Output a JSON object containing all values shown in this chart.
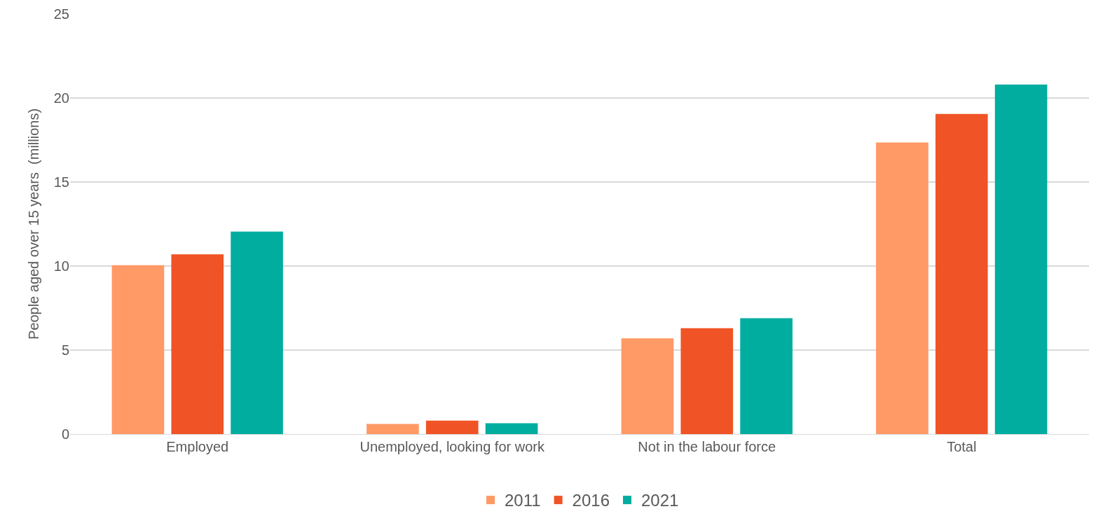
{
  "chart_data": {
    "type": "bar",
    "ylabel": "People aged over 15 years  (millions)",
    "categories": [
      "Employed",
      "Unemployed, looking for work",
      "Not in the labour force",
      "Total"
    ],
    "series": [
      {
        "name": "2011",
        "color": "#ff9966",
        "values": [
          10.05,
          0.6,
          5.7,
          17.35
        ]
      },
      {
        "name": "2016",
        "color": "#f05426",
        "values": [
          10.7,
          0.8,
          6.3,
          19.05
        ]
      },
      {
        "name": "2021",
        "color": "#00ad9f",
        "values": [
          12.05,
          0.65,
          6.9,
          20.8
        ]
      }
    ],
    "ylim": [
      0,
      25
    ],
    "yticks": [
      0,
      5,
      10,
      15,
      20,
      25
    ],
    "grid": "y",
    "legend": "bottom"
  }
}
